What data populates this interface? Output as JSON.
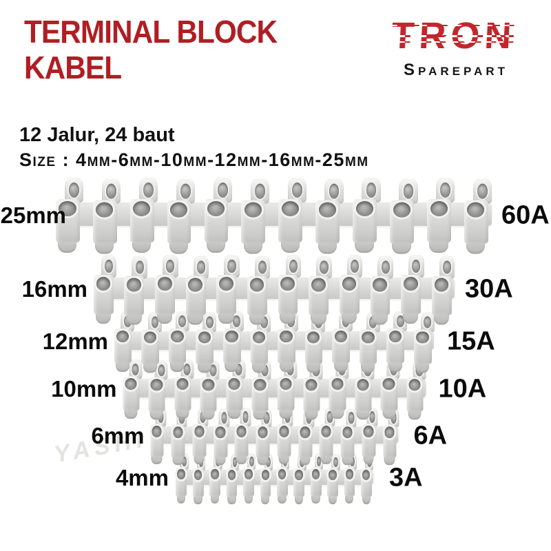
{
  "header": {
    "title_line1": "TERMINAL BLOCK",
    "title_line2": "KABEL",
    "title_color": "#b01e23",
    "brand": "TRON",
    "brand_color": "#c1272d",
    "brand_sub": "Sparepart"
  },
  "specs": {
    "line1": "12 Jalur, 24 baut",
    "line2": "Size : 4mm-6mm-10mm-12mm-16mm-25mm"
  },
  "watermark": "YASHI",
  "product": {
    "segments_per_row": 12,
    "rows": [
      {
        "size": "25mm",
        "amp": "60A"
      },
      {
        "size": "16mm",
        "amp": "30A"
      },
      {
        "size": "12mm",
        "amp": "15A"
      },
      {
        "size": "10mm",
        "amp": "10A"
      },
      {
        "size": "6mm",
        "amp": "6A"
      },
      {
        "size": "4mm",
        "amp": "3A"
      }
    ]
  }
}
